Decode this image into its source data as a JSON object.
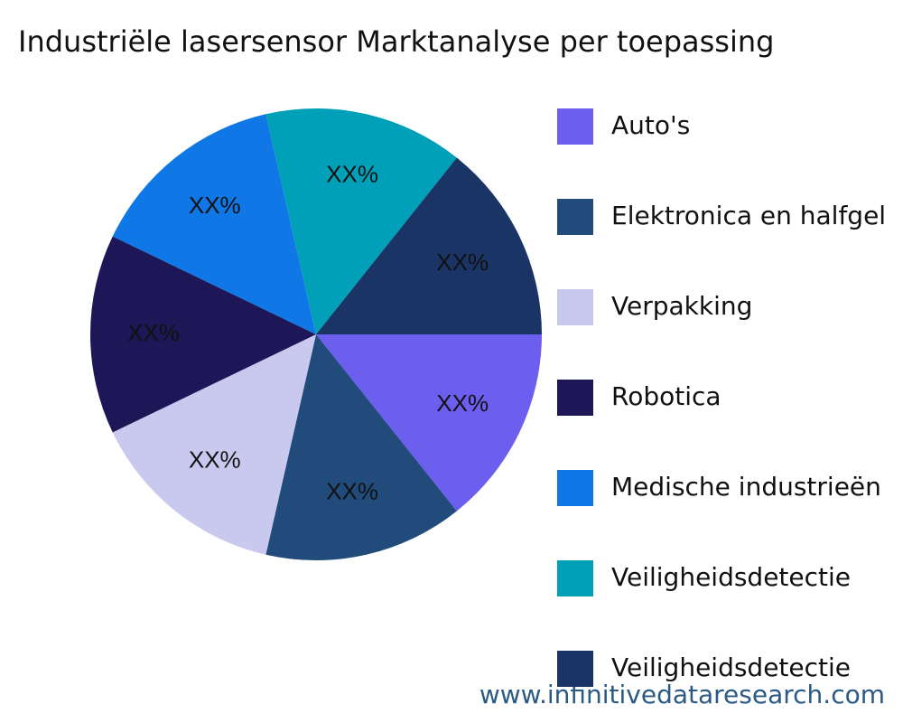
{
  "chart_data": {
    "type": "pie",
    "title": "Industriële lasersensor Marktanalyse per toepassing",
    "categories": [
      "Auto's",
      "Elektronica en halfgel",
      "Verpakking",
      "Robotica",
      "Medische industrieën",
      "Veiligheidsdetectie",
      "Veiligheidsdetectie"
    ],
    "values": [
      14.29,
      14.29,
      14.29,
      14.29,
      14.29,
      14.29,
      14.29
    ],
    "value_labels": [
      "XX%",
      "XX%",
      "XX%",
      "XX%",
      "XX%",
      "XX%",
      "XX%"
    ],
    "colors": [
      "#6c5ff0",
      "#204b7a",
      "#c9c9f0",
      "#1e1757",
      "#0f78e6",
      "#00a0b8",
      "#1b3466"
    ],
    "legend": "right",
    "watermark": "www.infinitivedataresearch.com"
  }
}
